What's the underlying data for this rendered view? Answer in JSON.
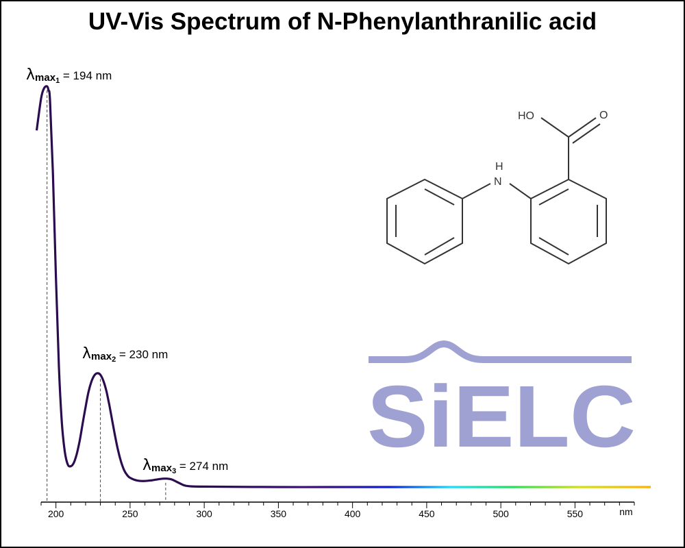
{
  "chart_data": {
    "type": "line",
    "title": "UV-Vis Spectrum of N-Phenylanthranilic acid",
    "xlabel": "nm",
    "ylabel": "",
    "xlim": [
      190,
      590
    ],
    "ylim": [
      0,
      1
    ],
    "x_ticks": [
      200,
      250,
      300,
      350,
      400,
      450,
      500,
      550
    ],
    "x_minor_step": 10,
    "grid": false,
    "x": [
      187,
      190,
      192,
      194,
      195,
      196,
      198,
      200,
      202,
      204,
      206,
      208,
      210,
      212,
      214,
      216,
      218,
      220,
      222,
      224,
      226,
      228,
      230,
      232,
      234,
      236,
      238,
      240,
      242,
      244,
      246,
      248,
      250,
      255,
      260,
      265,
      270,
      274,
      278,
      282,
      286,
      290,
      300,
      350,
      400,
      450,
      500,
      550,
      590
    ],
    "series": [
      {
        "values": [
          0.89,
          0.97,
          0.995,
          1.0,
          0.99,
          0.965,
          0.78,
          0.52,
          0.3,
          0.16,
          0.088,
          0.056,
          0.052,
          0.06,
          0.082,
          0.115,
          0.158,
          0.2,
          0.238,
          0.264,
          0.279,
          0.284,
          0.28,
          0.265,
          0.24,
          0.205,
          0.165,
          0.125,
          0.09,
          0.062,
          0.042,
          0.03,
          0.023,
          0.016,
          0.015,
          0.017,
          0.02,
          0.021,
          0.019,
          0.012,
          0.005,
          0.002,
          0.001,
          0.0,
          0.0,
          0.0,
          0.0,
          0.0,
          0.0
        ]
      }
    ],
    "peaks": [
      {
        "label_sub": "1",
        "wavelength": 194,
        "value": 1.0,
        "text": " = 194 nm"
      },
      {
        "label_sub": "2",
        "wavelength": 230,
        "value": 0.28,
        "text": " = 230 nm"
      },
      {
        "label_sub": "3",
        "wavelength": 274,
        "value": 0.021,
        "text": " = 274 nm"
      }
    ],
    "lambda_symbol": "λ",
    "lambda_subscript": "max",
    "line_color": "#2b0c4e"
  },
  "molecule": {
    "atoms": {
      "ho": "HO",
      "o": "O",
      "h": "H",
      "n": "N"
    }
  },
  "logo": {
    "text": "SiELC",
    "color": "#9fa1d2"
  }
}
